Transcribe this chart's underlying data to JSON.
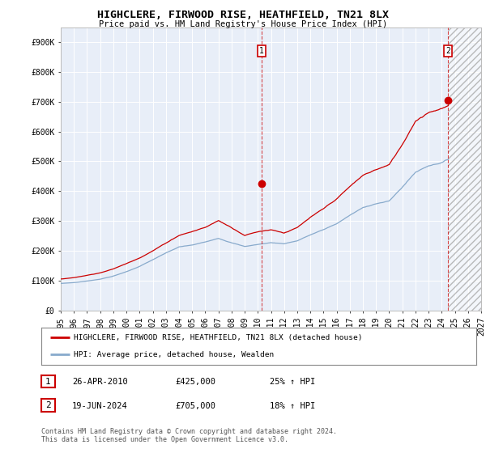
{
  "title": "HIGHCLERE, FIRWOOD RISE, HEATHFIELD, TN21 8LX",
  "subtitle": "Price paid vs. HM Land Registry's House Price Index (HPI)",
  "bg_color": "#ffffff",
  "plot_bg_color": "#e8eef8",
  "grid_color": "#ffffff",
  "red_color": "#cc0000",
  "blue_color": "#88aacc",
  "ylim": [
    0,
    950000
  ],
  "yticks": [
    0,
    100000,
    200000,
    300000,
    400000,
    500000,
    600000,
    700000,
    800000,
    900000
  ],
  "ytick_labels": [
    "£0",
    "£100K",
    "£200K",
    "£300K",
    "£400K",
    "£500K",
    "£600K",
    "£700K",
    "£800K",
    "£900K"
  ],
  "xmin": 1995,
  "xmax": 2027,
  "xtick_years": [
    1995,
    1996,
    1997,
    1998,
    1999,
    2000,
    2001,
    2002,
    2003,
    2004,
    2005,
    2006,
    2007,
    2008,
    2009,
    2010,
    2011,
    2012,
    2013,
    2014,
    2015,
    2016,
    2017,
    2018,
    2019,
    2020,
    2021,
    2022,
    2023,
    2024,
    2025,
    2026,
    2027
  ],
  "vline1_x": 2010.3,
  "vline2_x": 2024.47,
  "marker1_x": 2010.3,
  "marker1_y": 425000,
  "marker2_x": 2024.47,
  "marker2_y": 705000,
  "hatching_x_start": 2024.47,
  "hatching_x_end": 2027,
  "annotation1": [
    "1",
    "26-APR-2010",
    "£425,000",
    "25% ↑ HPI"
  ],
  "annotation2": [
    "2",
    "19-JUN-2024",
    "£705,000",
    "18% ↑ HPI"
  ],
  "legend_line1": "HIGHCLERE, FIRWOOD RISE, HEATHFIELD, TN21 8LX (detached house)",
  "legend_line2": "HPI: Average price, detached house, Wealden",
  "footnote": "Contains HM Land Registry data © Crown copyright and database right 2024.\nThis data is licensed under the Open Government Licence v3.0."
}
